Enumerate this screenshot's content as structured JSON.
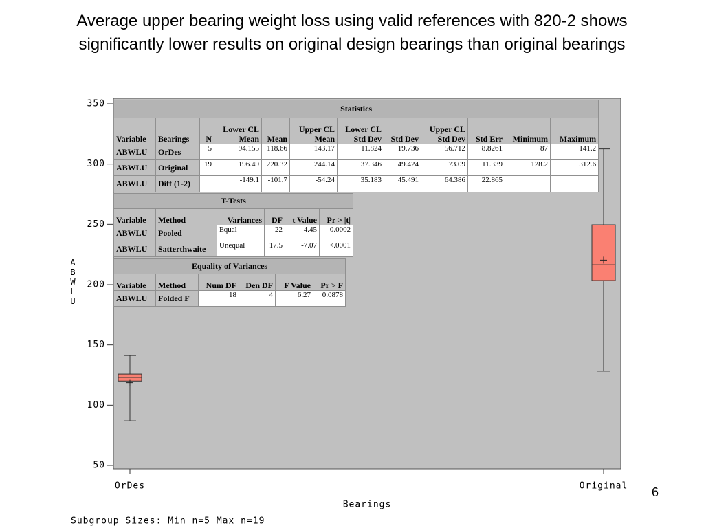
{
  "slide": {
    "title": "Average upper bearing weight loss using valid references with 820-2 shows significantly lower results on original design bearings than original bearings",
    "page_number": "6"
  },
  "chart_data": {
    "type": "box",
    "x_label": "Bearings",
    "y_label": "ABWLU",
    "categories": [
      "OrDes",
      "Original"
    ],
    "boxes": [
      {
        "min": 87,
        "q1": 120,
        "median": 123,
        "q3": 125.8,
        "max": 141.2,
        "mean": 118.66
      },
      {
        "min": 128.2,
        "q1": 203.4,
        "median": 216.5,
        "q3": 249.6,
        "max": 312.6,
        "mean": 220.32
      }
    ],
    "color": "#fa8072",
    "background": "#c0c0c0",
    "ylim": [
      50,
      350
    ],
    "yticks": [
      50,
      100,
      150,
      200,
      250,
      300,
      350
    ],
    "footnote": "Subgroup Sizes:  Min n=5   Max n=19"
  },
  "tables": [
    {
      "title": "Statistics",
      "header": [
        [
          "Variable"
        ],
        [
          "Bearings"
        ],
        [
          "N"
        ],
        [
          "Lower CL",
          "Mean"
        ],
        [
          "Mean"
        ],
        [
          "Upper CL",
          "Mean"
        ],
        [
          "Lower CL",
          "Std Dev"
        ],
        [
          "Std Dev"
        ],
        [
          "Upper CL",
          "Std Dev"
        ],
        [
          "Std Err"
        ],
        [
          "Minimum"
        ],
        [
          "Maximum"
        ]
      ],
      "rows": [
        [
          "ABWLU",
          "OrDes",
          "5",
          "94.155",
          "118.66",
          "143.17",
          "11.824",
          "19.736",
          "56.712",
          "8.8261",
          "87",
          "141.2"
        ],
        [
          "ABWLU",
          "Original",
          "19",
          "196.49",
          "220.32",
          "244.14",
          "37.346",
          "49.424",
          "73.09",
          "11.339",
          "128.2",
          "312.6"
        ],
        [
          "ABWLU",
          "Diff (1-2)",
          null,
          "-149.1",
          "-101.7",
          "-54.24",
          "35.183",
          "45.491",
          "64.386",
          "22.865",
          null,
          null
        ]
      ]
    },
    {
      "title": "T-Tests",
      "header": [
        [
          "Variable"
        ],
        [
          "Method"
        ],
        [
          "Variances"
        ],
        [
          "DF"
        ],
        [
          "t Value"
        ],
        [
          "Pr > |t|"
        ]
      ],
      "rows": [
        [
          "ABWLU",
          "Pooled",
          "Equal",
          "22",
          "-4.45",
          "0.0002"
        ],
        [
          "ABWLU",
          "Satterthwaite",
          "Unequal",
          "17.5",
          "-7.07",
          "<.0001"
        ]
      ]
    },
    {
      "title": "Equality of Variances",
      "header": [
        [
          "Variable"
        ],
        [
          "Method"
        ],
        [
          "Num DF"
        ],
        [
          "Den DF"
        ],
        [
          "F Value"
        ],
        [
          "Pr > F"
        ]
      ],
      "rows": [
        [
          "ABWLU",
          "Folded F",
          "18",
          "4",
          "6.27",
          "0.0878"
        ]
      ]
    }
  ]
}
